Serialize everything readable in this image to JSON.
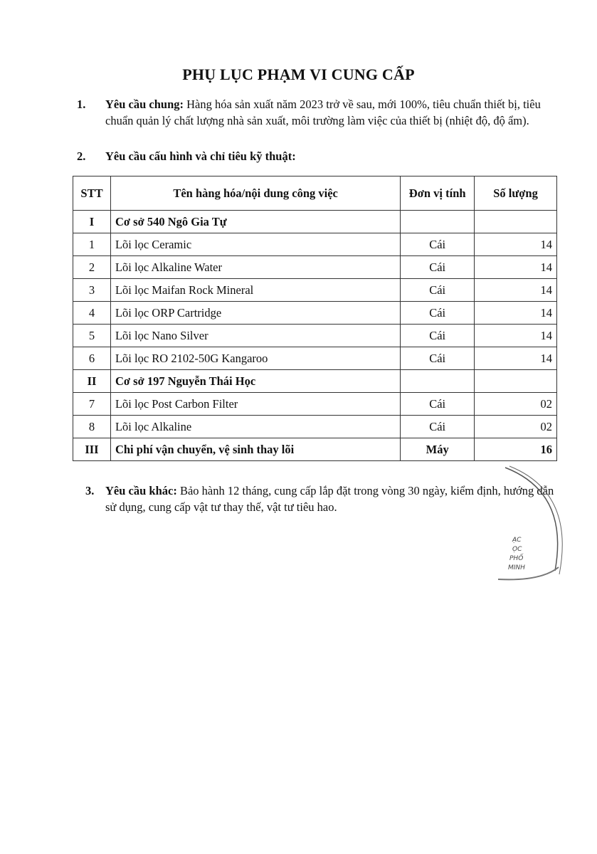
{
  "title": "PHỤ LỤC PHẠM VI CUNG CẤP",
  "sections": [
    {
      "number": "1.",
      "heading": "Yêu cầu chung:",
      "text": " Hàng hóa sản xuất năm 2023 trở về sau, mới 100%, tiêu chuẩn thiết bị, tiêu chuẩn quản lý chất lượng nhà sản xuất, môi trường làm việc của thiết bị (nhiệt độ, độ ẩm)."
    },
    {
      "number": "2.",
      "heading": "Yêu cầu cấu hình và chỉ tiêu kỹ thuật:",
      "text": ""
    },
    {
      "number": "3.",
      "heading": "Yêu cầu khác:",
      "text": " Bảo hành 12 tháng, cung cấp lắp đặt trong vòng 30 ngày, kiểm định, hướng dẫn sử dụng, cung cấp vật tư thay thế, vật tư tiêu hao."
    }
  ],
  "table": {
    "headers": [
      "STT",
      "Tên hàng hóa/nội dung công việc",
      "Đơn vị tính",
      "Số lượng"
    ],
    "rows": [
      {
        "group": true,
        "stt": "I",
        "name": "Cơ sở 540 Ngô Gia Tự",
        "unit": "",
        "qty": ""
      },
      {
        "stt": "1",
        "name": "Lõi lọc Ceramic",
        "unit": "Cái",
        "qty": "14"
      },
      {
        "stt": "2",
        "name": "Lõi lọc Alkaline Water",
        "unit": "Cái",
        "qty": "14"
      },
      {
        "stt": "3",
        "name": "Lõi lọc Maifan Rock Mineral",
        "unit": "Cái",
        "qty": "14"
      },
      {
        "stt": "4",
        "name": "Lõi lọc ORP Cartridge",
        "unit": "Cái",
        "qty": "14"
      },
      {
        "stt": "5",
        "name": "Lõi lọc Nano Silver",
        "unit": "Cái",
        "qty": "14"
      },
      {
        "stt": "6",
        "name": "Lõi lọc RO 2102-50G Kangaroo",
        "unit": "Cái",
        "qty": "14"
      },
      {
        "group": true,
        "stt": "II",
        "name": "Cơ sở 197 Nguyễn Thái Học",
        "unit": "",
        "qty": ""
      },
      {
        "stt": "7",
        "name": "Lõi lọc Post Carbon Filter",
        "unit": "Cái",
        "qty": "02"
      },
      {
        "stt": "8",
        "name": "Lõi lọc Alkaline",
        "unit": "Cái",
        "qty": "02"
      },
      {
        "group": true,
        "stt": "III",
        "name": "Chi phí vận chuyển, vệ sinh thay lõi",
        "unit": "Máy",
        "qty": "16"
      }
    ]
  },
  "stamp": {
    "lines": [
      "ẠC",
      "ỌC",
      "PHỐ",
      "MINH"
    ]
  }
}
